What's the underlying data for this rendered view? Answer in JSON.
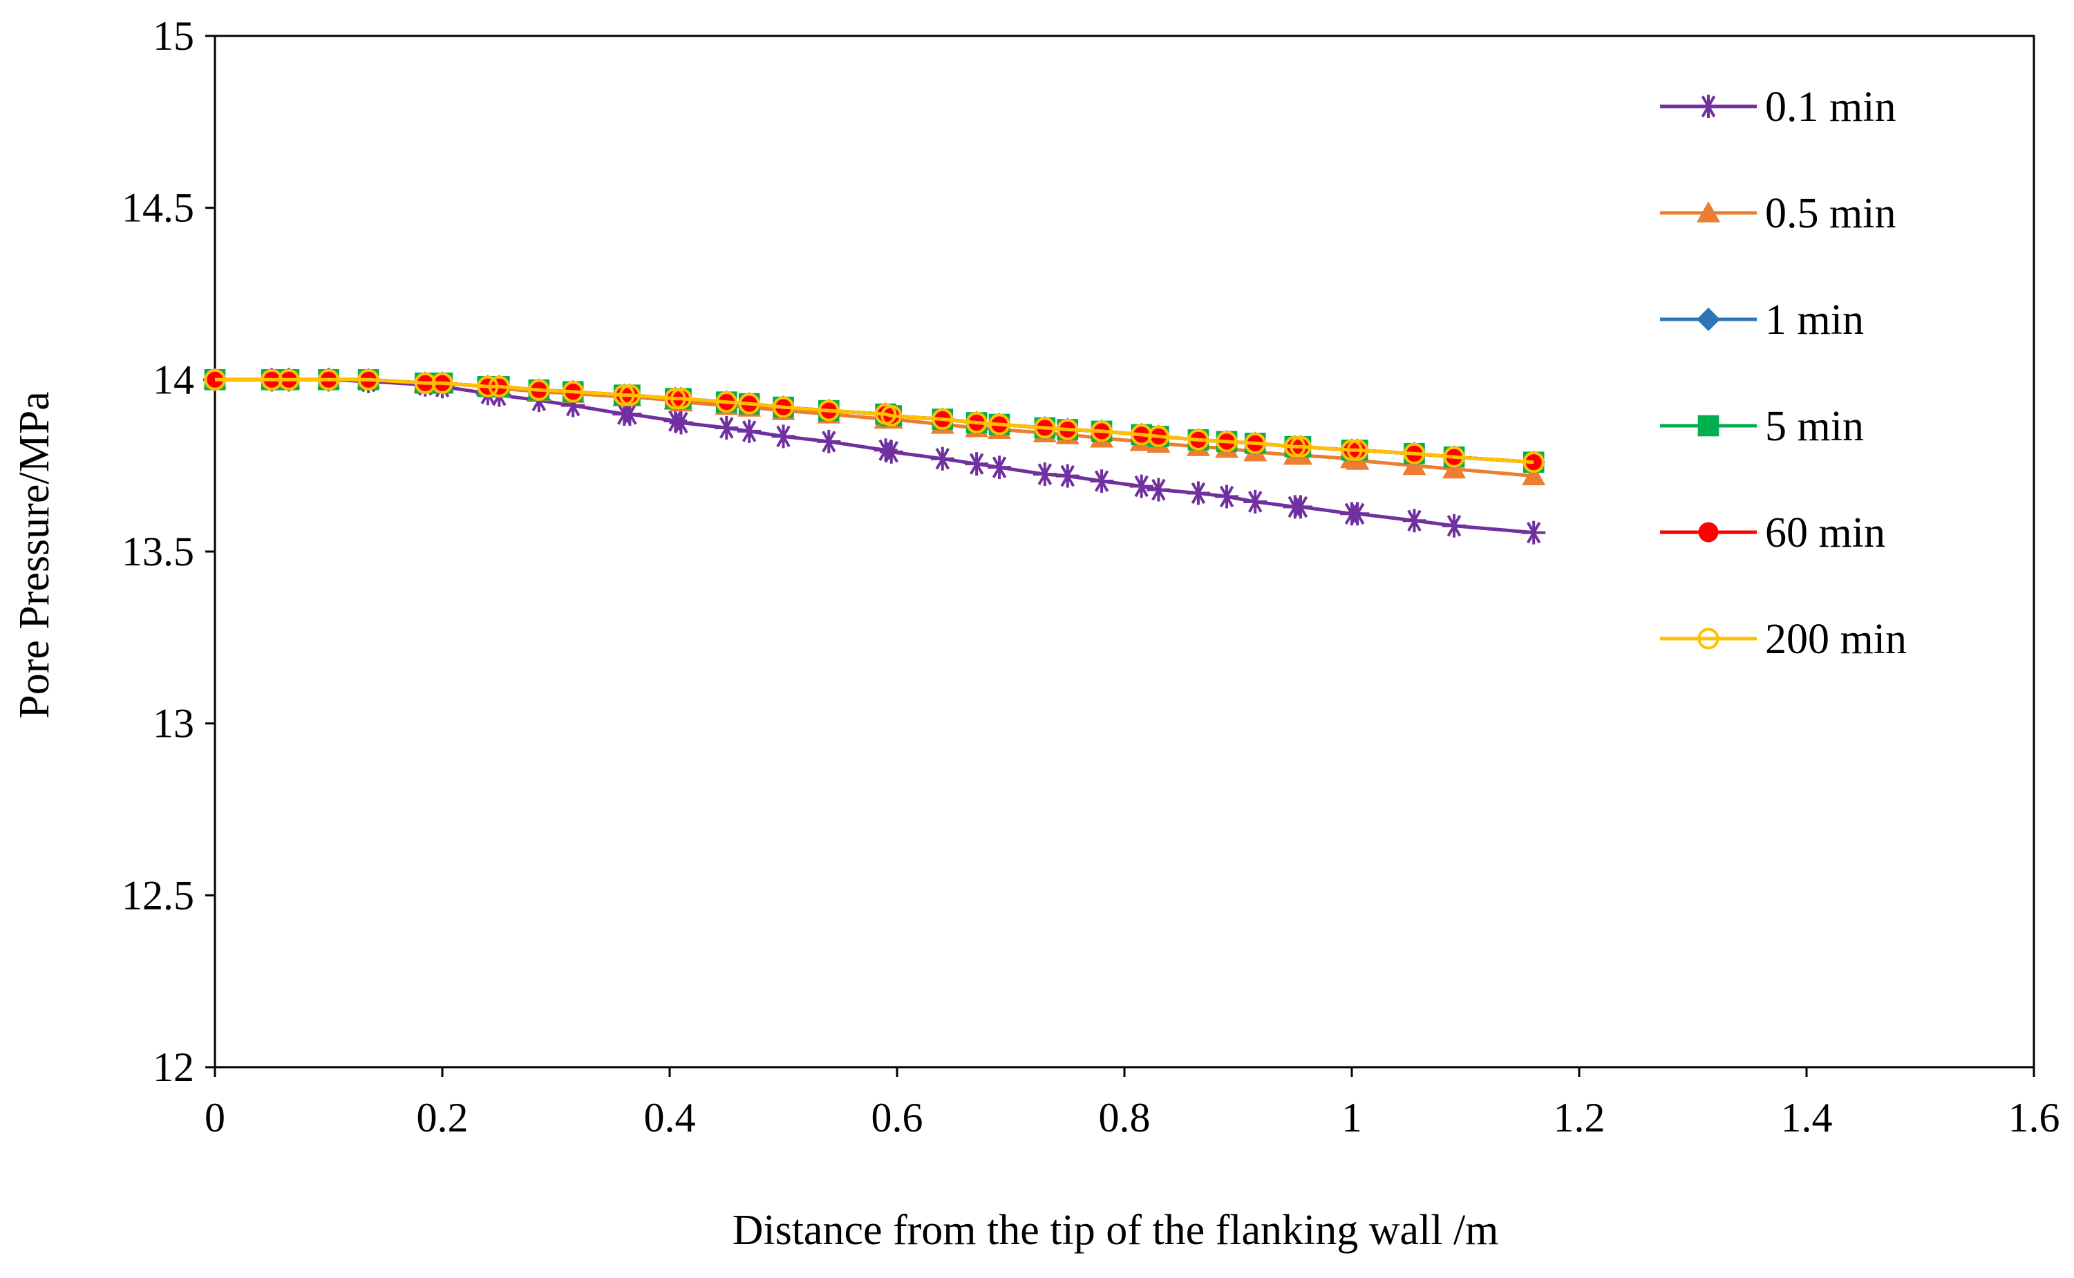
{
  "chart_data": {
    "type": "line",
    "title": "",
    "xlabel": "Distance from the tip of the flanking wall  /m",
    "ylabel": "Pore Pressure/MPa",
    "xlim": [
      0,
      1.6
    ],
    "ylim": [
      12,
      15
    ],
    "xticks": [
      0,
      0.2,
      0.4,
      0.6,
      0.8,
      1,
      1.2,
      1.4,
      1.6
    ],
    "xtick_labels": [
      "0",
      "0.2",
      "0.4",
      "0.6",
      "0.8",
      "1",
      "1.2",
      "1.4",
      "1.6"
    ],
    "yticks": [
      12,
      12.5,
      13,
      13.5,
      14,
      14.5,
      15
    ],
    "ytick_labels": [
      "12",
      "12.5",
      "13",
      "13.5",
      "14",
      "14.5",
      "15"
    ],
    "grid": false,
    "legend_position": "top-right",
    "x": [
      0,
      0.05,
      0.065,
      0.1,
      0.135,
      0.185,
      0.2,
      0.24,
      0.25,
      0.285,
      0.315,
      0.36,
      0.365,
      0.405,
      0.41,
      0.45,
      0.47,
      0.5,
      0.54,
      0.59,
      0.595,
      0.64,
      0.67,
      0.69,
      0.73,
      0.75,
      0.78,
      0.815,
      0.83,
      0.865,
      0.89,
      0.915,
      0.95,
      0.955,
      1.0,
      1.005,
      1.055,
      1.09,
      1.16
    ],
    "series": [
      {
        "name": "0.1 min",
        "color": "#7030A0",
        "marker": "asterisk",
        "values": [
          14.0,
          14.0,
          14.0,
          14.0,
          13.995,
          13.985,
          13.98,
          13.96,
          13.955,
          13.94,
          13.925,
          13.9,
          13.9,
          13.88,
          13.875,
          13.86,
          13.85,
          13.835,
          13.82,
          13.795,
          13.79,
          13.77,
          13.755,
          13.745,
          13.725,
          13.72,
          13.705,
          13.69,
          13.68,
          13.67,
          13.66,
          13.645,
          13.63,
          13.63,
          13.61,
          13.61,
          13.59,
          13.575,
          13.555
        ]
      },
      {
        "name": "0.5 min",
        "color": "#ED7D31",
        "marker": "triangle",
        "values": [
          14.0,
          14.0,
          14.0,
          14.0,
          14.0,
          13.99,
          13.99,
          13.98,
          13.975,
          13.965,
          13.96,
          13.95,
          13.95,
          13.94,
          13.935,
          13.925,
          13.92,
          13.91,
          13.9,
          13.885,
          13.885,
          13.87,
          13.86,
          13.855,
          13.845,
          13.84,
          13.83,
          13.82,
          13.815,
          13.805,
          13.8,
          13.79,
          13.78,
          13.78,
          13.77,
          13.765,
          13.75,
          13.74,
          13.72
        ]
      },
      {
        "name": "1 min",
        "color": "#2E75B6",
        "marker": "diamond",
        "values": [
          14.0,
          14.0,
          14.0,
          14.0,
          14.0,
          13.99,
          13.99,
          13.98,
          13.98,
          13.97,
          13.965,
          13.955,
          13.955,
          13.945,
          13.945,
          13.935,
          13.93,
          13.92,
          13.91,
          13.9,
          13.895,
          13.885,
          13.875,
          13.87,
          13.86,
          13.855,
          13.85,
          13.84,
          13.835,
          13.825,
          13.82,
          13.815,
          13.805,
          13.805,
          13.795,
          13.795,
          13.785,
          13.775,
          13.76
        ]
      },
      {
        "name": "5 min",
        "color": "#00B050",
        "marker": "square",
        "values": [
          14.0,
          14.0,
          14.0,
          14.0,
          14.0,
          13.99,
          13.99,
          13.98,
          13.98,
          13.97,
          13.965,
          13.955,
          13.955,
          13.945,
          13.945,
          13.935,
          13.93,
          13.92,
          13.91,
          13.9,
          13.895,
          13.885,
          13.875,
          13.87,
          13.86,
          13.855,
          13.85,
          13.84,
          13.835,
          13.825,
          13.82,
          13.815,
          13.805,
          13.805,
          13.795,
          13.795,
          13.785,
          13.775,
          13.76
        ]
      },
      {
        "name": "60 min",
        "color": "#FF0000",
        "marker": "circle",
        "values": [
          14.0,
          14.0,
          14.0,
          14.0,
          14.0,
          13.99,
          13.99,
          13.98,
          13.98,
          13.97,
          13.965,
          13.955,
          13.955,
          13.945,
          13.945,
          13.935,
          13.93,
          13.92,
          13.91,
          13.9,
          13.895,
          13.885,
          13.875,
          13.87,
          13.86,
          13.855,
          13.85,
          13.84,
          13.835,
          13.825,
          13.82,
          13.815,
          13.805,
          13.805,
          13.795,
          13.795,
          13.785,
          13.775,
          13.76
        ]
      },
      {
        "name": "200 min",
        "color": "#FFC000",
        "marker": "open-circle",
        "values": [
          14.0,
          14.0,
          14.0,
          14.0,
          14.0,
          13.99,
          13.99,
          13.98,
          13.98,
          13.97,
          13.965,
          13.955,
          13.955,
          13.945,
          13.945,
          13.935,
          13.93,
          13.92,
          13.91,
          13.9,
          13.895,
          13.885,
          13.875,
          13.87,
          13.86,
          13.855,
          13.85,
          13.84,
          13.835,
          13.825,
          13.82,
          13.815,
          13.805,
          13.805,
          13.795,
          13.795,
          13.785,
          13.775,
          13.76
        ]
      }
    ]
  }
}
